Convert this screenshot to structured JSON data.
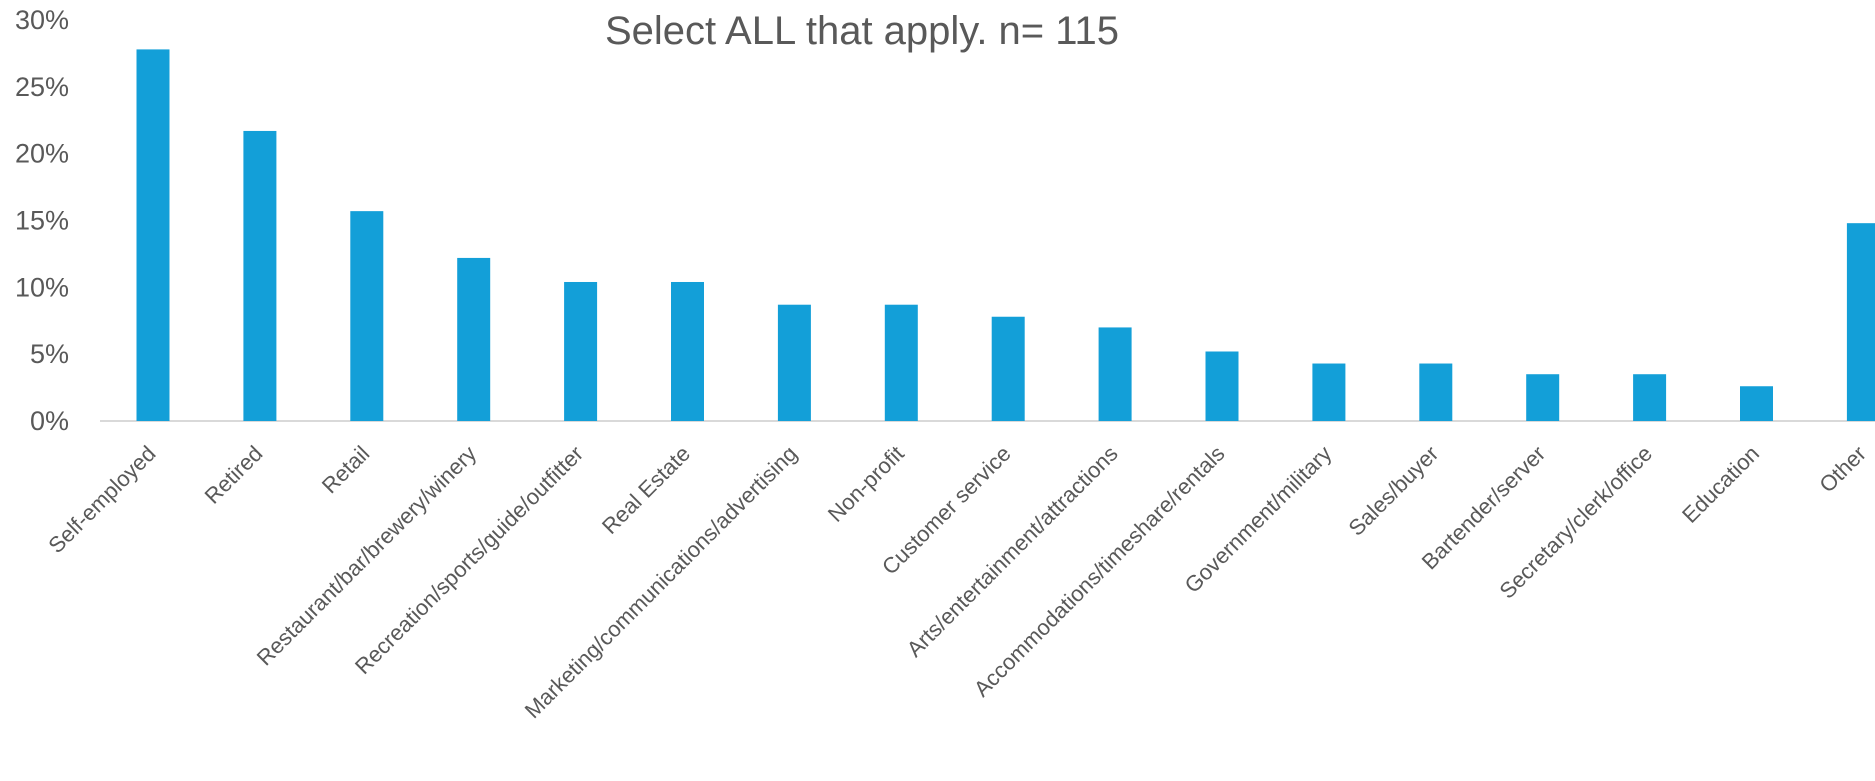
{
  "chart_data": {
    "type": "bar",
    "title": "Select ALL that apply. n= 115",
    "xlabel": "",
    "ylabel": "",
    "categories": [
      "Self-employed",
      "Retired",
      "Retail",
      "Restaurant/bar/brewery/winery",
      "Recreation/sports/guide/outfitter",
      "Real Estate",
      "Marketing/communications/advertising",
      "Non-profit",
      "Customer service",
      "Arts/entertainment/attractions",
      "Accommodations/timeshare/rentals",
      "Government/military",
      "Sales/buyer",
      "Bartender/server",
      "Secretary/clerk/office",
      "Education",
      "Other"
    ],
    "values": [
      27.8,
      21.7,
      15.7,
      12.2,
      10.4,
      10.4,
      8.7,
      8.7,
      7.8,
      7.0,
      5.2,
      4.3,
      4.3,
      3.5,
      3.5,
      2.6,
      14.8
    ],
    "ylim": [
      0,
      30
    ],
    "yticks": [
      0,
      5,
      10,
      15,
      20,
      25,
      30
    ],
    "ytick_labels": [
      "0%",
      "5%",
      "10%",
      "15%",
      "20%",
      "25%",
      "30%"
    ],
    "grid": false,
    "legend": "none",
    "bar_color": "#139FD8",
    "axis_color": "#D9D9D9",
    "text_color": "#595959"
  }
}
